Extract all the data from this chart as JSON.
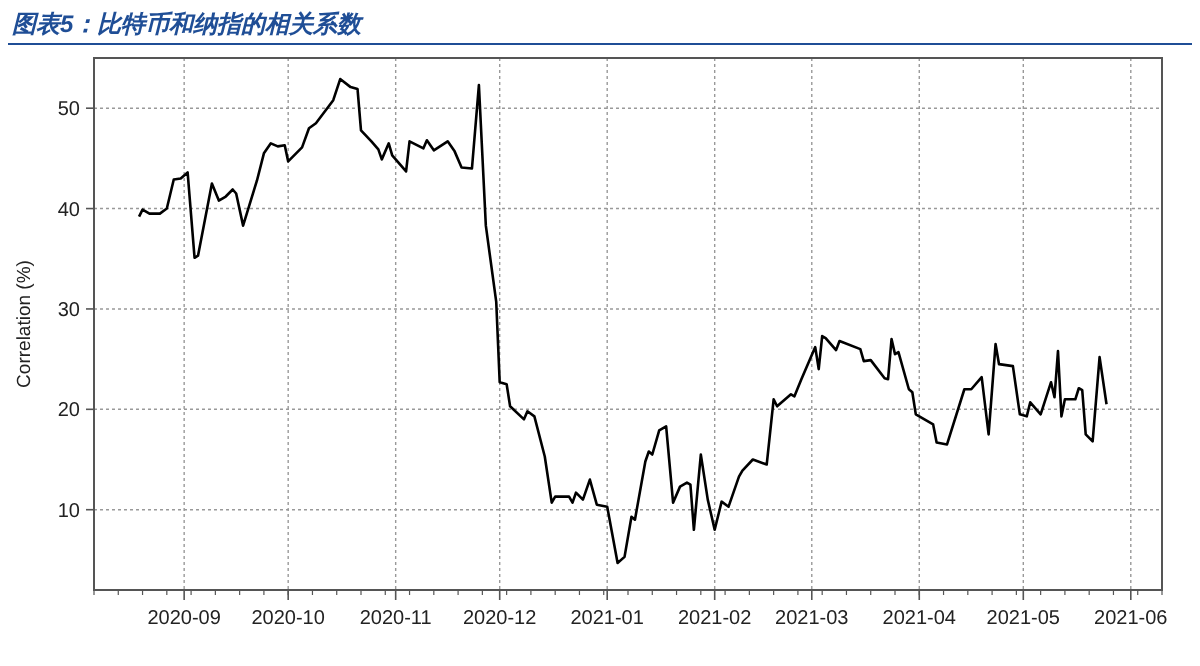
{
  "chart_data": {
    "type": "line",
    "title": "图表5：比特币和纳指的相关系数",
    "ylabel": "Correlation (%)",
    "xlim": [
      "2020-08-06",
      "2021-06-10"
    ],
    "ylim": [
      2,
      55
    ],
    "xticks": [
      "2020-09",
      "2020-10",
      "2020-11",
      "2020-12",
      "2021-01",
      "2021-02",
      "2021-03",
      "2021-04",
      "2021-05",
      "2021-06"
    ],
    "yticks": [
      10,
      20,
      30,
      40,
      50
    ],
    "grid": true,
    "marker": "none",
    "line_style": "solid",
    "series": [
      {
        "color": "#000000",
        "x": [
          "2020-08-19",
          "2020-08-20",
          "2020-08-22",
          "2020-08-25",
          "2020-08-27",
          "2020-08-29",
          "2020-08-31",
          "2020-09-02",
          "2020-09-04",
          "2020-09-05",
          "2020-09-09",
          "2020-09-11",
          "2020-09-13",
          "2020-09-15",
          "2020-09-16",
          "2020-09-18",
          "2020-09-22",
          "2020-09-24",
          "2020-09-26",
          "2020-09-28",
          "2020-09-30",
          "2020-10-01",
          "2020-10-05",
          "2020-10-07",
          "2020-10-09",
          "2020-10-14",
          "2020-10-16",
          "2020-10-19",
          "2020-10-21",
          "2020-10-22",
          "2020-10-25",
          "2020-10-27",
          "2020-10-28",
          "2020-10-30",
          "2020-10-31",
          "2020-11-04",
          "2020-11-05",
          "2020-11-09",
          "2020-11-10",
          "2020-11-12",
          "2020-11-16",
          "2020-11-18",
          "2020-11-20",
          "2020-11-23",
          "2020-11-25",
          "2020-11-27",
          "2020-11-30",
          "2020-12-01",
          "2020-12-03",
          "2020-12-04",
          "2020-12-08",
          "2020-12-09",
          "2020-12-11",
          "2020-12-14",
          "2020-12-16",
          "2020-12-17",
          "2020-12-21",
          "2020-12-22",
          "2020-12-23",
          "2020-12-25",
          "2020-12-27",
          "2020-12-29",
          "2021-01-01",
          "2021-01-04",
          "2021-01-06",
          "2021-01-08",
          "2021-01-09",
          "2021-01-12",
          "2021-01-13",
          "2021-01-14",
          "2021-01-16",
          "2021-01-18",
          "2021-01-20",
          "2021-01-22",
          "2021-01-24",
          "2021-01-25",
          "2021-01-26",
          "2021-01-28",
          "2021-01-30",
          "2021-02-01",
          "2021-02-03",
          "2021-02-05",
          "2021-02-08",
          "2021-02-09",
          "2021-02-12",
          "2021-02-16",
          "2021-02-18",
          "2021-02-19",
          "2021-02-23",
          "2021-02-24",
          "2021-02-26",
          "2021-03-02",
          "2021-03-03",
          "2021-03-04",
          "2021-03-05",
          "2021-03-08",
          "2021-03-09",
          "2021-03-15",
          "2021-03-16",
          "2021-03-18",
          "2021-03-22",
          "2021-03-23",
          "2021-03-24",
          "2021-03-25",
          "2021-03-26",
          "2021-03-29",
          "2021-03-30",
          "2021-03-31",
          "2021-04-05",
          "2021-04-06",
          "2021-04-09",
          "2021-04-14",
          "2021-04-16",
          "2021-04-19",
          "2021-04-21",
          "2021-04-23",
          "2021-04-24",
          "2021-04-28",
          "2021-04-30",
          "2021-05-02",
          "2021-05-03",
          "2021-05-06",
          "2021-05-09",
          "2021-05-10",
          "2021-05-11",
          "2021-05-12",
          "2021-05-13",
          "2021-05-16",
          "2021-05-17",
          "2021-05-18",
          "2021-05-19",
          "2021-05-21",
          "2021-05-23",
          "2021-05-25"
        ],
        "values": [
          39.2,
          39.9,
          39.5,
          39.5,
          40,
          42.9,
          43,
          43.6,
          35.1,
          35.3,
          42.5,
          40.8,
          41.2,
          41.9,
          41.5,
          38.3,
          42.8,
          45.5,
          46.5,
          46.2,
          46.3,
          44.7,
          46.1,
          48,
          48.5,
          50.8,
          52.9,
          52.1,
          51.9,
          47.8,
          46.7,
          45.9,
          44.9,
          46.5,
          45.3,
          43.7,
          46.7,
          46,
          46.8,
          45.8,
          46.7,
          45.7,
          44.1,
          44,
          52.3,
          38.3,
          30.7,
          22.7,
          22.5,
          20.3,
          19,
          19.8,
          19.3,
          15.3,
          10.7,
          11.3,
          11.3,
          10.7,
          11.7,
          11,
          13,
          10.5,
          10.3,
          4.7,
          5.3,
          9.3,
          9,
          14.8,
          15.8,
          15.5,
          17.9,
          18.3,
          10.7,
          12.3,
          12.7,
          12.5,
          8,
          15.5,
          11,
          8,
          10.8,
          10.3,
          13.3,
          13.9,
          15,
          14.5,
          21,
          20.3,
          21.5,
          21.3,
          23,
          26.2,
          24,
          27.3,
          27.1,
          25.9,
          26.8,
          26,
          24.8,
          24.9,
          23.1,
          23,
          27,
          25.5,
          25.7,
          22,
          21.7,
          19.5,
          18.5,
          16.7,
          16.5,
          22,
          22,
          23.2,
          17.5,
          26.5,
          24.5,
          24.3,
          19.5,
          19.3,
          20.7,
          19.5,
          22.7,
          21.2,
          25.8,
          19.3,
          21,
          21,
          22.1,
          21.9,
          17.5,
          16.8,
          25.2,
          20.5
        ]
      }
    ]
  }
}
